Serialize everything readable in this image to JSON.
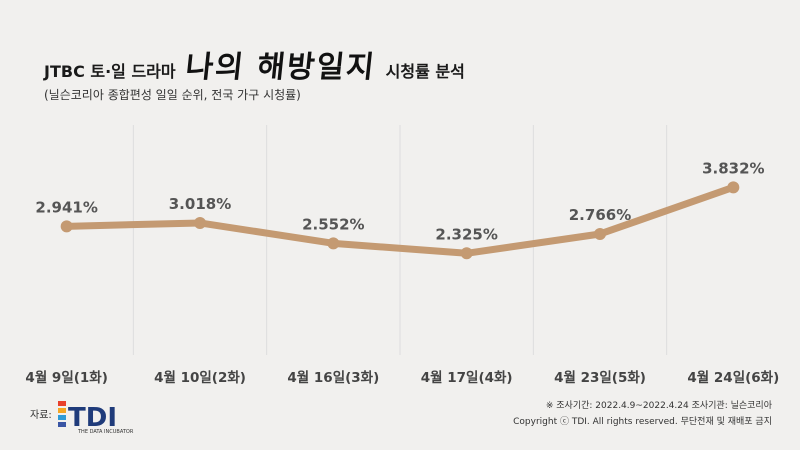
{
  "header": {
    "title_prefix": "JTBC 토·일 드라마",
    "title_show": "나의 해방일지",
    "title_suffix": "시청률 분석",
    "subtitle": "(닐슨코리아 종합편성 일일 순위, 전국 가구 시청률)"
  },
  "chart_data": {
    "type": "line",
    "title": "",
    "xlabel": "",
    "ylabel": "",
    "categories": [
      "4월 9일(1화)",
      "4월 10일(2화)",
      "4월 16일(3화)",
      "4월 17일(4화)",
      "4월 23일(5화)",
      "4월 24일(6화)"
    ],
    "series": [
      {
        "values": [
          2.941,
          3.018,
          2.552,
          2.325,
          2.766,
          3.832
        ]
      }
    ],
    "value_labels": [
      "2.941%",
      "3.018%",
      "2.552%",
      "2.325%",
      "2.766%",
      "3.832%"
    ],
    "ylim": [
      0,
      5.6
    ],
    "grid": "vertical separators",
    "line_color": "#c49a72"
  },
  "footer": {
    "source_label": "자료:",
    "logo_text": "TDI",
    "logo_tagline": "THE DATA INCUBATOR",
    "period_note": "※ 조사기간: 2022.4.9~2022.4.24   조사기관: 닐슨코리아",
    "copyright": "Copyright ⓒ TDI. All rights reserved. 무단전재 및 재배포 금지"
  }
}
